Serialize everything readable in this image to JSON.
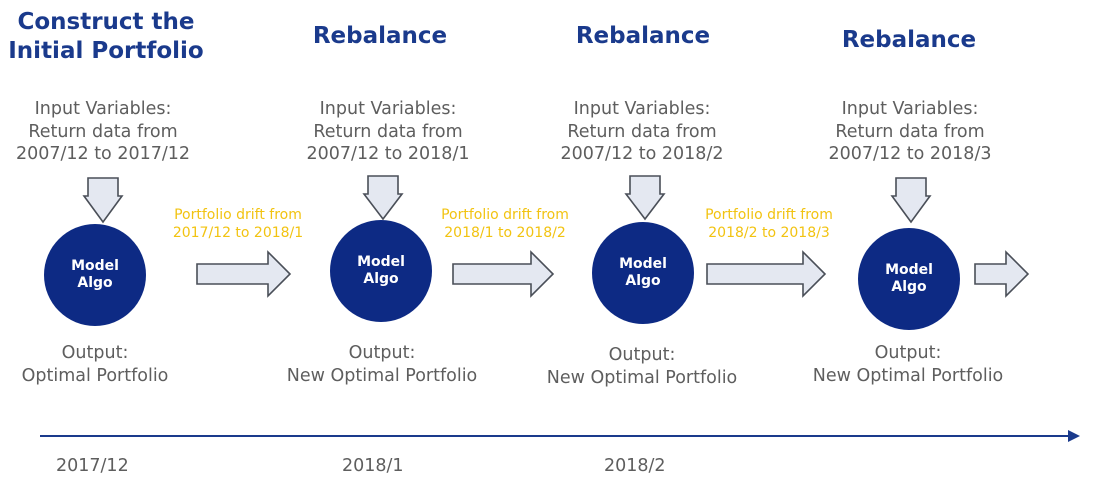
{
  "stages": [
    {
      "title_lines": [
        "Construct the",
        "Initial Portfolio"
      ],
      "input_lines": [
        "Input Variables:",
        "Return data from",
        "2007/12 to 2017/12"
      ],
      "model_lines": [
        "Model",
        "Algo"
      ],
      "output_lines": [
        "Output:",
        "Optimal Portfolio"
      ]
    },
    {
      "title_lines": [
        "Rebalance"
      ],
      "input_lines": [
        "Input Variables:",
        "Return data from",
        "2007/12 to 2018/1"
      ],
      "model_lines": [
        "Model",
        "Algo"
      ],
      "output_lines": [
        "Output:",
        "New Optimal Portfolio"
      ]
    },
    {
      "title_lines": [
        "Rebalance"
      ],
      "input_lines": [
        "Input Variables:",
        "Return data from",
        "2007/12 to 2018/2"
      ],
      "model_lines": [
        "Model",
        "Algo"
      ],
      "output_lines": [
        "Output:",
        "New Optimal Portfolio"
      ]
    },
    {
      "title_lines": [
        "Rebalance"
      ],
      "input_lines": [
        "Input Variables:",
        "Return data from",
        "2007/12 to 2018/3"
      ],
      "model_lines": [
        "Model",
        "Algo"
      ],
      "output_lines": [
        "Output:",
        "New Optimal Portfolio"
      ]
    }
  ],
  "drifts": [
    [
      "Portfolio drift from",
      "2017/12 to 2018/1"
    ],
    [
      "Portfolio drift from",
      "2018/1 to 2018/2"
    ],
    [
      "Portfolio drift from",
      "2018/2 to 2018/3"
    ]
  ],
  "timeline_dates": [
    "2017/12",
    "2018/1",
    "2018/2"
  ],
  "colors": {
    "title": "#1a3a8c",
    "circle": "#0d2a84",
    "drift_text": "#f2c311",
    "arrow_fill": "#e4e8f1",
    "arrow_stroke": "#4a4f58",
    "timeline": "#1a3a8c",
    "body_text": "#5e5e5e"
  }
}
